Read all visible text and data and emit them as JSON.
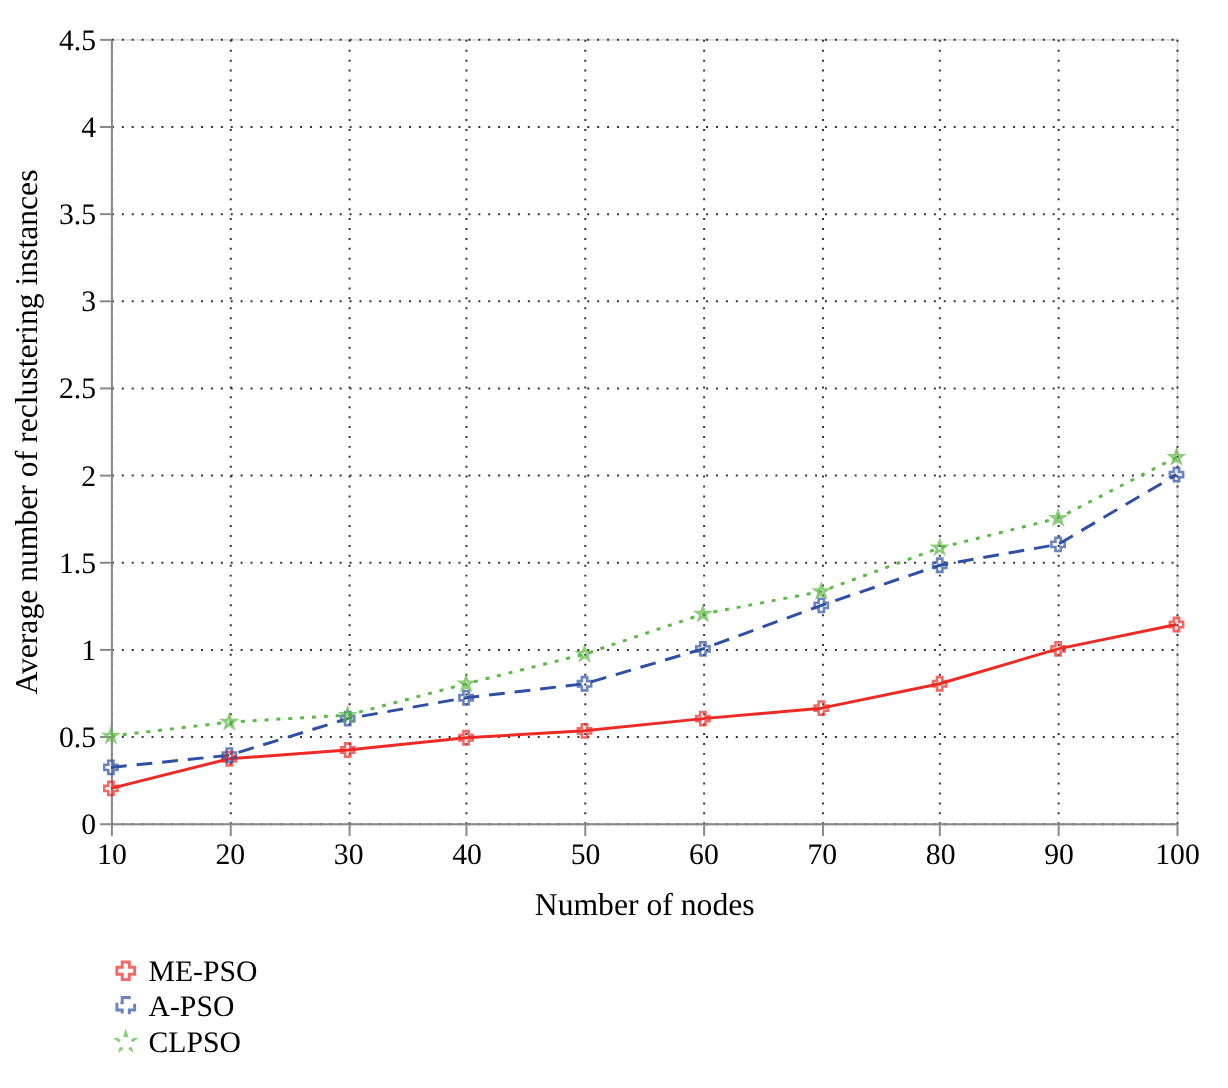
{
  "chart_data": {
    "type": "line",
    "xlabel": "Number of nodes",
    "ylabel": "Average number of reclustering instances",
    "x": [
      10,
      20,
      30,
      40,
      50,
      60,
      70,
      80,
      90,
      100
    ],
    "series": [
      {
        "name": "ME-PSO",
        "color": "#ee2a24",
        "line_style": "solid",
        "marker": "cross",
        "values": [
          0.2,
          0.37,
          0.42,
          0.49,
          0.53,
          0.6,
          0.66,
          0.8,
          1.0,
          1.14
        ]
      },
      {
        "name": "A-PSO",
        "color": "#2e4fa3",
        "line_style": "dashed",
        "marker": "cross",
        "values": [
          0.32,
          0.39,
          0.6,
          0.72,
          0.8,
          1.0,
          1.25,
          1.48,
          1.6,
          2.0
        ]
      },
      {
        "name": "CLPSO",
        "color": "#5cb946",
        "line_style": "dotted",
        "marker": "star",
        "values": [
          0.5,
          0.58,
          0.62,
          0.8,
          0.97,
          1.2,
          1.33,
          1.58,
          1.75,
          2.1
        ]
      }
    ],
    "xlim": [
      10,
      100
    ],
    "xticks": [
      10,
      20,
      30,
      40,
      50,
      60,
      70,
      80,
      90,
      100
    ],
    "ylim": [
      0,
      4.5
    ],
    "yticks": [
      0,
      0.5,
      1,
      1.5,
      2,
      2.5,
      3,
      3.5,
      4,
      4.5
    ],
    "grid": true,
    "legend": "bottom left"
  }
}
